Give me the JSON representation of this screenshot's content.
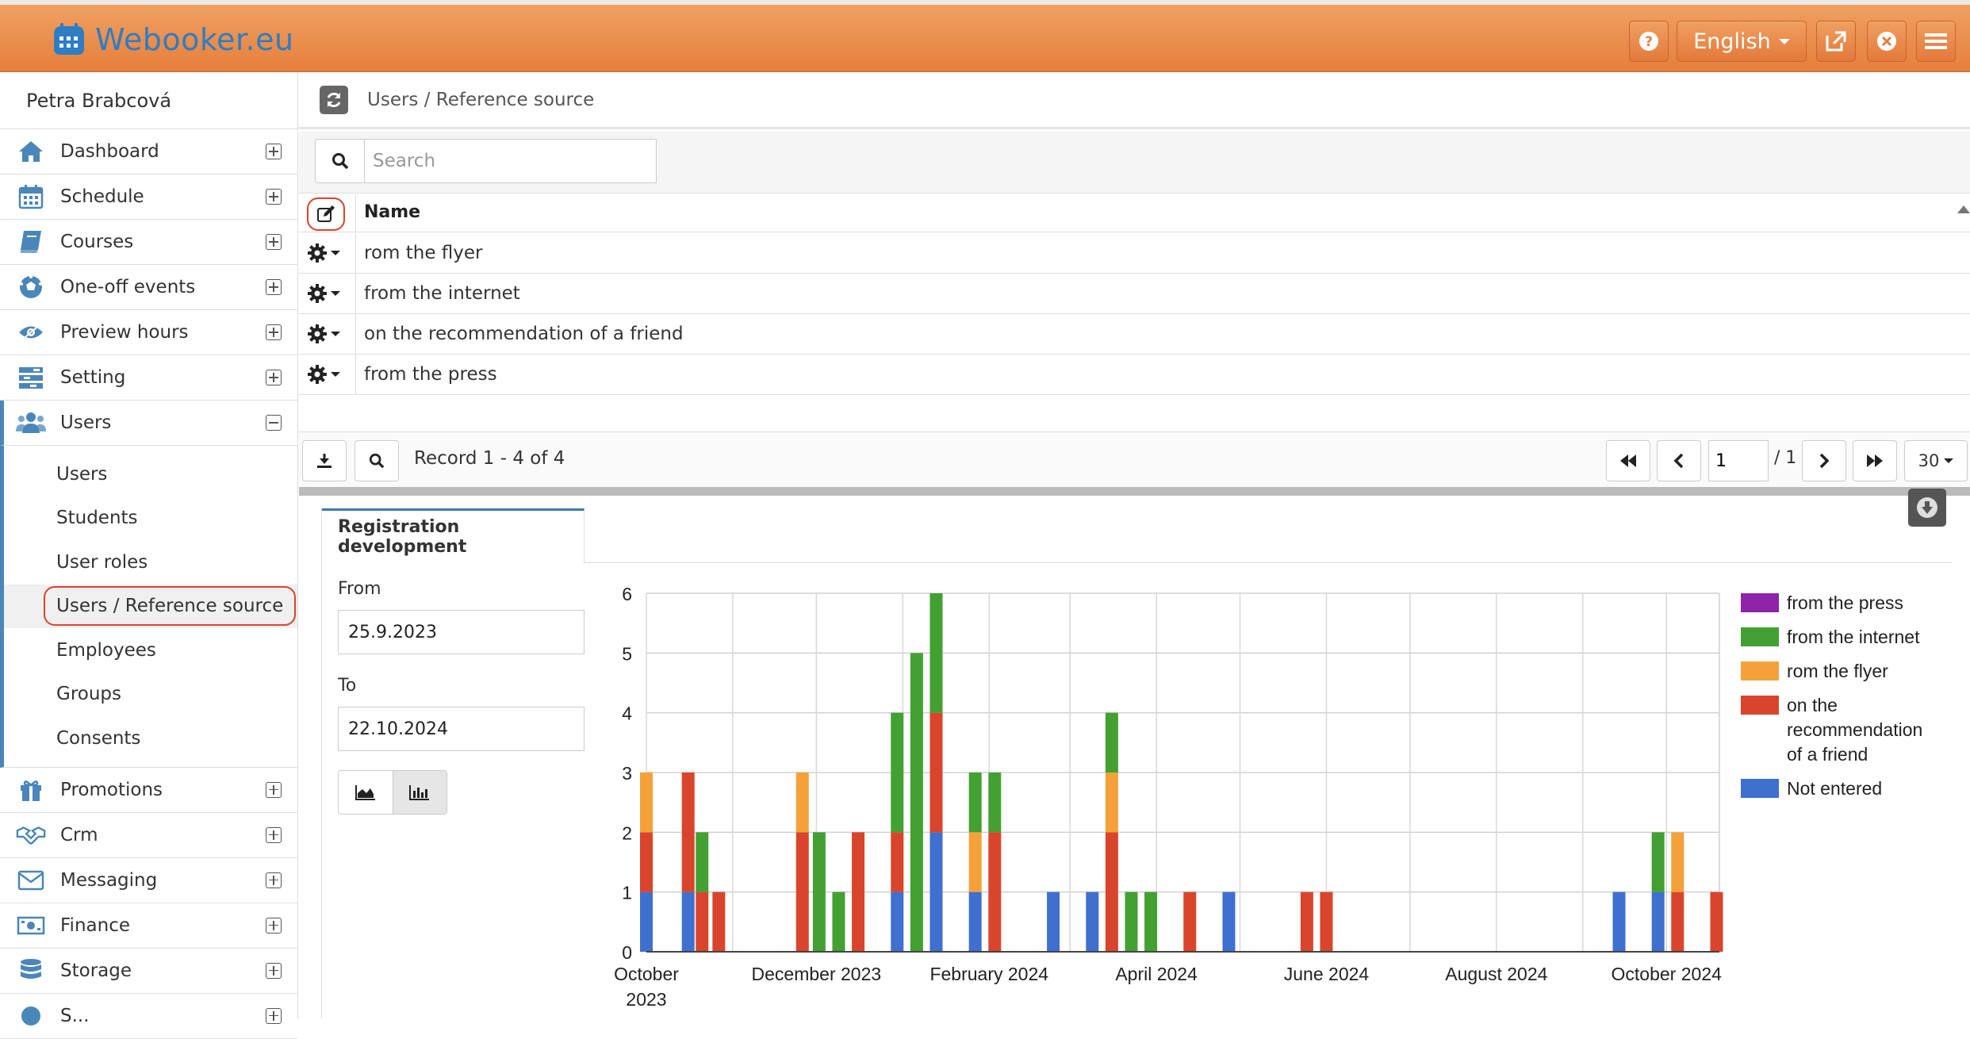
{
  "app": {
    "title": "Webooker.eu",
    "language": "English"
  },
  "user": {
    "name": "Petra Brabcová"
  },
  "sidebar": {
    "items": [
      {
        "label": "Dashboard",
        "icon": "home-icon"
      },
      {
        "label": "Schedule",
        "icon": "calendar-icon"
      },
      {
        "label": "Courses",
        "icon": "book-icon"
      },
      {
        "label": "One-off events",
        "icon": "ball-icon"
      },
      {
        "label": "Preview hours",
        "icon": "eye-icon"
      },
      {
        "label": "Setting",
        "icon": "settings-icon"
      },
      {
        "label": "Users",
        "icon": "users-icon"
      }
    ],
    "sub_items": [
      "Users",
      "Students",
      "User roles",
      "Users / Reference source",
      "Employees",
      "Groups",
      "Consents"
    ],
    "items_after": [
      {
        "label": "Promotions",
        "icon": "gift-icon"
      },
      {
        "label": "Crm",
        "icon": "handshake-icon"
      },
      {
        "label": "Messaging",
        "icon": "envelope-icon"
      },
      {
        "label": "Finance",
        "icon": "money-icon"
      },
      {
        "label": "Storage",
        "icon": "database-icon"
      },
      {
        "label": "S...",
        "icon": "generic-icon"
      }
    ]
  },
  "breadcrumb": "Users / Reference source",
  "search": {
    "placeholder": "Search"
  },
  "table": {
    "column": "Name",
    "rows": [
      "rom the flyer",
      "from the internet",
      "on the recommendation of a friend",
      "from the press"
    ]
  },
  "pager": {
    "record_text": "Record 1 - 4 of 4",
    "page": "1",
    "total": "/ 1",
    "per_page": "30"
  },
  "panel": {
    "tab": "Registration development",
    "from_label": "From",
    "from_value": "25.9.2023",
    "to_label": "To",
    "to_value": "22.10.2024"
  },
  "chart_data": {
    "type": "bar",
    "stacked": true,
    "ylim": [
      0,
      6
    ],
    "yticks": [
      0,
      1,
      2,
      3,
      4,
      5,
      6
    ],
    "xtick_labels": [
      "October 2023",
      "December 2023",
      "February 2024",
      "April 2024",
      "June 2024",
      "August 2024",
      "October 2024"
    ],
    "legend_position": "right",
    "series": [
      {
        "name": "from the press",
        "color": "#8e24aa"
      },
      {
        "name": "from the internet",
        "color": "#43a033"
      },
      {
        "name": "rom the flyer",
        "color": "#f4a13a"
      },
      {
        "name": "on the recommendation of a friend",
        "color": "#d9452c"
      },
      {
        "name": "Not entered",
        "color": "#3f6fcf"
      }
    ],
    "bars": [
      {
        "date": "2023-10-01",
        "values": {
          "Not entered": 1,
          "on the recommendation of a friend": 1,
          "rom the flyer": 1
        }
      },
      {
        "date": "2023-10-16",
        "values": {
          "Not entered": 1,
          "on the recommendation of a friend": 2
        }
      },
      {
        "date": "2023-10-21",
        "values": {
          "on the recommendation of a friend": 1,
          "from the internet": 1
        }
      },
      {
        "date": "2023-10-27",
        "values": {
          "on the recommendation of a friend": 1
        }
      },
      {
        "date": "2023-11-26",
        "values": {
          "on the recommendation of a friend": 2,
          "rom the flyer": 1
        }
      },
      {
        "date": "2023-12-02",
        "values": {
          "from the internet": 2
        }
      },
      {
        "date": "2023-12-09",
        "values": {
          "from the internet": 1
        }
      },
      {
        "date": "2023-12-16",
        "values": {
          "on the recommendation of a friend": 2
        }
      },
      {
        "date": "2023-12-30",
        "values": {
          "Not entered": 1,
          "on the recommendation of a friend": 1,
          "from the internet": 2
        }
      },
      {
        "date": "2024-01-06",
        "values": {
          "from the internet": 5
        }
      },
      {
        "date": "2024-01-13",
        "values": {
          "Not entered": 2,
          "on the recommendation of a friend": 2,
          "from the internet": 2
        }
      },
      {
        "date": "2024-01-27",
        "values": {
          "Not entered": 1,
          "rom the flyer": 1,
          "from the internet": 1
        }
      },
      {
        "date": "2024-02-03",
        "values": {
          "on the recommendation of a friend": 2,
          "from the internet": 1
        }
      },
      {
        "date": "2024-02-24",
        "values": {
          "Not entered": 1
        }
      },
      {
        "date": "2024-03-09",
        "values": {
          "Not entered": 1
        }
      },
      {
        "date": "2024-03-16",
        "values": {
          "on the recommendation of a friend": 2,
          "rom the flyer": 1,
          "from the internet": 1
        }
      },
      {
        "date": "2024-03-23",
        "values": {
          "from the internet": 1
        }
      },
      {
        "date": "2024-03-30",
        "values": {
          "from the internet": 1
        }
      },
      {
        "date": "2024-04-13",
        "values": {
          "on the recommendation of a friend": 1
        }
      },
      {
        "date": "2024-04-27",
        "values": {
          "Not entered": 1
        }
      },
      {
        "date": "2024-05-25",
        "values": {
          "on the recommendation of a friend": 1
        }
      },
      {
        "date": "2024-06-01",
        "values": {
          "on the recommendation of a friend": 1
        }
      },
      {
        "date": "2024-09-14",
        "values": {
          "Not entered": 1
        }
      },
      {
        "date": "2024-09-28",
        "values": {
          "Not entered": 1,
          "from the internet": 1
        }
      },
      {
        "date": "2024-10-05",
        "values": {
          "on the recommendation of a friend": 1,
          "rom the flyer": 1
        }
      },
      {
        "date": "2024-10-19",
        "values": {
          "on the recommendation of a friend": 1
        }
      }
    ]
  }
}
